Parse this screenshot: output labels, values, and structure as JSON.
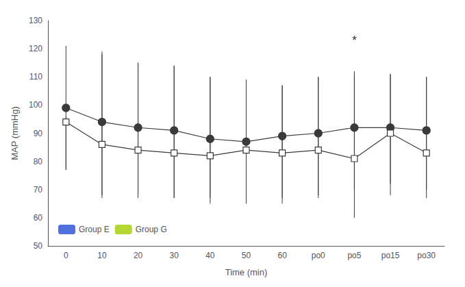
{
  "chart_data": {
    "type": "line",
    "xlabel": "Time (min)",
    "ylabel": "MAP (mmHg)",
    "categories": [
      "0",
      "10",
      "20",
      "30",
      "40",
      "50",
      "60",
      "po0",
      "po5",
      "po15",
      "po30"
    ],
    "series": [
      {
        "name": "Group E",
        "color": "#3a3a3a",
        "marker": "filled-circle",
        "values": [
          99,
          94,
          92,
          91,
          88,
          87,
          89,
          90,
          92,
          92,
          91
        ],
        "error_upper": [
          22,
          24,
          23,
          23,
          22,
          22,
          18,
          20,
          20,
          19,
          19
        ],
        "error_lower": [
          22,
          26,
          24,
          24,
          23,
          22,
          24,
          22,
          22,
          20,
          21
        ]
      },
      {
        "name": "Group G",
        "color": "#3a3a3a",
        "marker": "open-square",
        "values": [
          94,
          86,
          84,
          83,
          82,
          84,
          83,
          84,
          81,
          90,
          83
        ],
        "error_upper": [
          2,
          33,
          31,
          31,
          28,
          25,
          24,
          26,
          30,
          21,
          27
        ],
        "error_lower": [
          17,
          19,
          17,
          16,
          15,
          17,
          16,
          17,
          21,
          22,
          16
        ]
      }
    ],
    "annotations": [
      {
        "text": "*",
        "x": "po5",
        "y": 123
      }
    ],
    "ylim": [
      50,
      130
    ],
    "yticks": [
      50,
      60,
      70,
      80,
      90,
      100,
      110,
      120,
      130
    ],
    "legend": "lower left",
    "grid": false
  }
}
